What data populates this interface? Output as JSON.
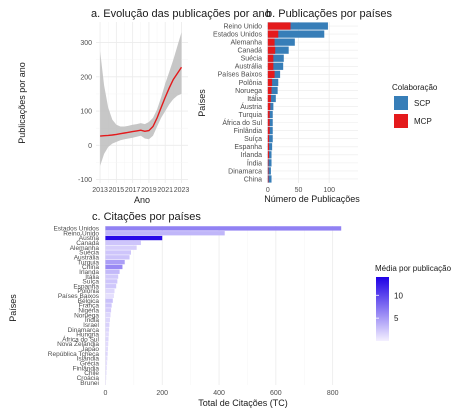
{
  "chart_data": [
    {
      "id": "a",
      "type": "line",
      "title": "a. Evolução das publicações por ano",
      "xlabel": "Ano",
      "ylabel": "Publicações por ano",
      "xlim": [
        2012.5,
        2023.8
      ],
      "ylim": [
        -110,
        360
      ],
      "x_ticks": [
        2013,
        2015,
        2017,
        2019,
        2021,
        2023
      ],
      "x_tick_labels": [
        "2013",
        "2015",
        "2017",
        "2019",
        "2021",
        "2023"
      ],
      "y_ticks": [
        -100,
        0,
        100,
        200,
        300
      ],
      "y_tick_labels": [
        "-100",
        "0",
        "100",
        "200",
        "300"
      ],
      "line_color": "#e31a1c",
      "band_color": "#bdbdbd",
      "points": {
        "x": [
          2013,
          2013.5,
          2014,
          2014.5,
          2015,
          2015.5,
          2016,
          2016.5,
          2017,
          2017.5,
          2018,
          2018.5,
          2019,
          2019.5,
          2020,
          2020.5,
          2021,
          2021.5,
          2022,
          2022.5,
          2023
        ],
        "y": [
          27,
          28,
          29,
          30,
          32,
          34,
          36,
          38,
          40,
          42,
          44,
          41,
          43,
          55,
          80,
          110,
          140,
          168,
          192,
          210,
          228
        ]
      },
      "band": {
        "lower": [
          -60,
          -25,
          -5,
          5,
          10,
          15,
          18,
          20,
          22,
          25,
          28,
          20,
          18,
          28,
          55,
          80,
          100,
          120,
          135,
          145,
          150
        ],
        "upper": [
          275,
          175,
          110,
          75,
          60,
          55,
          55,
          57,
          60,
          62,
          65,
          62,
          68,
          80,
          105,
          140,
          180,
          215,
          250,
          290,
          330
        ]
      }
    },
    {
      "id": "b",
      "type": "bar",
      "orientation": "horizontal",
      "stacked": true,
      "title": "b. Publicações por países",
      "xlabel": "Número de Publicações",
      "ylabel": "Países",
      "xlim": [
        -3,
        147
      ],
      "x_ticks": [
        0,
        50,
        100
      ],
      "x_tick_labels": [
        "0",
        "50",
        "100"
      ],
      "categories": [
        "Reino Unido",
        "Estados Unidos",
        "Alemanha",
        "Canadá",
        "Suécia",
        "Austrália",
        "Países Baixos",
        "Polônia",
        "Noruega",
        "Itália",
        "Áustria",
        "Turquia",
        "África do Sul",
        "Finlândia",
        "Suíça",
        "Espanha",
        "Irlanda",
        "Índia",
        "Dinamarca",
        "China"
      ],
      "series": [
        {
          "name": "SCP",
          "color": "#377eb8",
          "values": [
            98,
            92,
            44,
            34,
            26,
            25,
            20,
            17,
            16,
            13,
            9,
            8,
            8,
            8,
            8,
            7,
            6,
            6,
            5,
            6
          ]
        },
        {
          "name": "MCP",
          "color": "#e41a1c",
          "values": [
            37,
            17,
            11,
            12,
            9,
            9,
            11,
            7,
            6,
            5,
            4,
            3,
            3,
            3,
            2,
            2,
            2,
            1,
            1,
            1
          ]
        }
      ],
      "legend": {
        "title": "Colaboração",
        "placement": "right"
      }
    },
    {
      "id": "c",
      "type": "bar",
      "orientation": "horizontal",
      "title": "c. Citações por países",
      "xlabel": "Total de Citações (TC)",
      "ylabel": "Países",
      "xlim": [
        -12,
        868
      ],
      "x_ticks": [
        0,
        200,
        400,
        600,
        800
      ],
      "x_tick_labels": [
        "0",
        "200",
        "400",
        "600",
        "800"
      ],
      "categories": [
        "Estados Unidos",
        "Reino Unido",
        "Áustria",
        "Canadá",
        "Alemanha",
        "Suécia",
        "Austrália",
        "Turquia",
        "China",
        "Irlanda",
        "Itália",
        "Suíça",
        "Espanha",
        "Polônia",
        "Países Baixos",
        "Bélgica",
        "França",
        "Nigéria",
        "Noruega",
        "Índia",
        "Israel",
        "Dinamarca",
        "Hungria",
        "África do Sul",
        "Nova Zelândia",
        "Japão",
        "República Tcheca",
        "Islândia",
        "Grécia",
        "Finlândia",
        "Chile",
        "Croácia",
        "Brunei"
      ],
      "values": [
        830,
        420,
        200,
        125,
        110,
        90,
        85,
        68,
        60,
        50,
        45,
        42,
        38,
        32,
        30,
        26,
        22,
        20,
        18,
        16,
        14,
        13,
        12,
        11,
        10,
        9,
        8,
        7,
        6,
        5,
        4,
        3,
        2
      ],
      "mean_per_publication": [
        6.5,
        3.4,
        13.5,
        2.5,
        2.0,
        2.5,
        2.6,
        4.8,
        6.0,
        3.2,
        2.3,
        2.5,
        2.4,
        1.5,
        1.0,
        2.8,
        2.5,
        2.2,
        1.5,
        1.5,
        1.8,
        1.5,
        1.2,
        1.5,
        1.2,
        1.2,
        1.5,
        1.2,
        1.0,
        1.0,
        1.0,
        0.8,
        0.5
      ],
      "legend": {
        "title": "Média por publicação",
        "ticks": [
          5,
          10
        ],
        "range": [
          0,
          14
        ],
        "placement": "right",
        "color_low": "#f4f0ff",
        "color_high": "#1f00e6"
      }
    }
  ]
}
